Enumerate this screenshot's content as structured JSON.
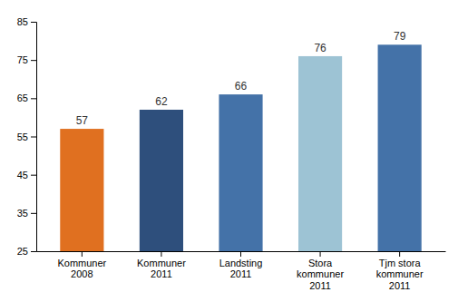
{
  "chart_data": {
    "type": "bar",
    "categories": [
      "Kommuner\n2008",
      "Kommuner\n2011",
      "Landsting\n2011",
      "Stora\nkommuner\n2011",
      "Tjm stora\nkommuner\n2011"
    ],
    "values": [
      57,
      62,
      66,
      76,
      79
    ],
    "colors": [
      "#E07020",
      "#2E4F7C",
      "#4472A8",
      "#9DC3D4",
      "#4472A8"
    ],
    "ylim": [
      25,
      85
    ],
    "yticks": [
      25,
      35,
      45,
      55,
      65,
      75,
      85
    ],
    "data_labels": true,
    "grid": false
  }
}
